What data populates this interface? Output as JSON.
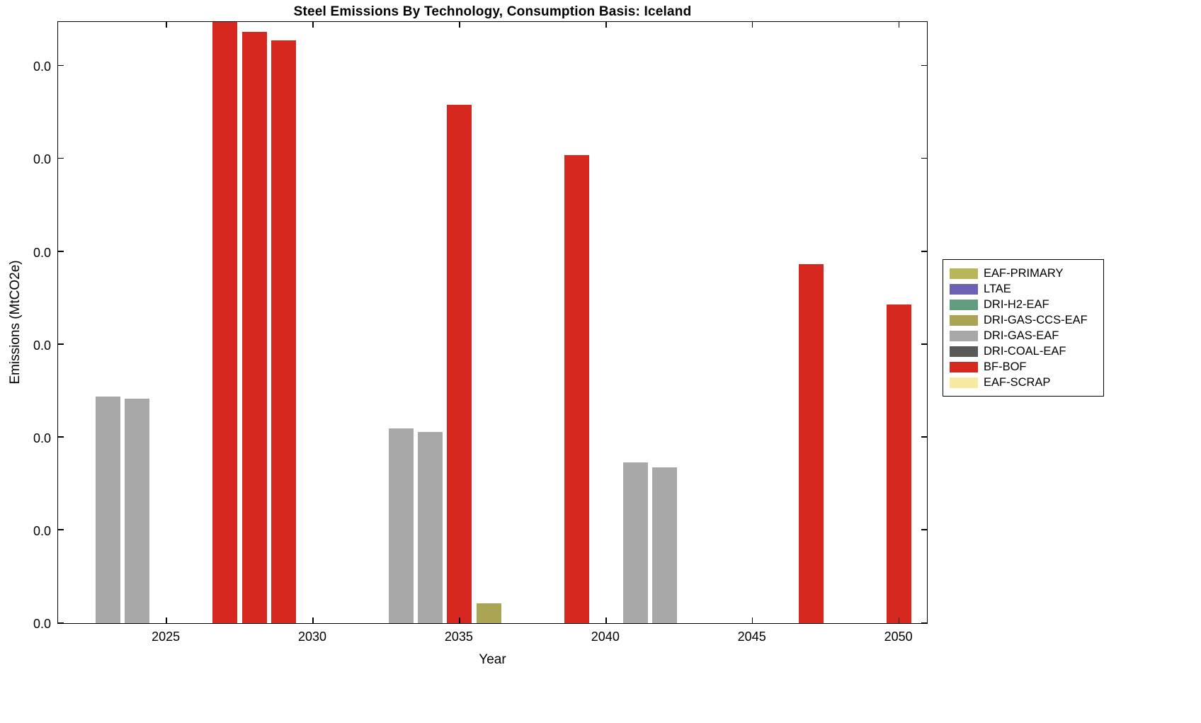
{
  "figure": {
    "title": "Steel Emissions By Technology, Consumption Basis: Iceland",
    "xlabel": "Year",
    "ylabel": "Emissions (MtCO2e)"
  },
  "legend": {
    "items": [
      {
        "label": "EAF-PRIMARY",
        "color": "#b9b659"
      },
      {
        "label": "LTAE",
        "color": "#6c61b4"
      },
      {
        "label": "DRI-H2-EAF",
        "color": "#619c80"
      },
      {
        "label": "DRI-GAS-CCS-EAF",
        "color": "#aaa454"
      },
      {
        "label": "DRI-GAS-EAF",
        "color": "#a8a8a8"
      },
      {
        "label": "DRI-COAL-EAF",
        "color": "#595959"
      },
      {
        "label": "BF-BOF",
        "color": "#d6281e"
      },
      {
        "label": "EAF-SCRAP",
        "color": "#f8e9a2"
      }
    ]
  },
  "chart_data": {
    "type": "bar",
    "title": "Steel Emissions By Technology, Consumption Basis: Iceland",
    "xlabel": "Year",
    "ylabel": "Emissions (MtCO2e)",
    "grid": false,
    "legend_position": "right-outside",
    "x_range": [
      2021.3,
      2051.0
    ],
    "x_ticks": [
      2025,
      2030,
      2035,
      2040,
      2045,
      2050
    ],
    "y_max_units": 6.49,
    "y_tick_note": "Gridline/tick spacing = 1 unit; every y tick label renders as 0.0 because the emission values are below the one-decimal display precision. Bar values below are in tick units (1 unit = one tick interval).",
    "y_ticks": [
      {
        "units": 0,
        "label": "0.0"
      },
      {
        "units": 1,
        "label": "0.0"
      },
      {
        "units": 2,
        "label": "0.0"
      },
      {
        "units": 3,
        "label": "0.0"
      },
      {
        "units": 4,
        "label": "0.0"
      },
      {
        "units": 5,
        "label": "0.0"
      },
      {
        "units": 6,
        "label": "0.0"
      }
    ],
    "bar_width_years": 0.85,
    "bars": [
      {
        "year": 2023,
        "tech": "DRI-GAS-EAF",
        "value": 2.44
      },
      {
        "year": 2024,
        "tech": "DRI-GAS-EAF",
        "value": 2.42
      },
      {
        "year": 2027,
        "tech": "BF-BOF",
        "value": 6.49
      },
      {
        "year": 2028,
        "tech": "BF-BOF",
        "value": 6.37
      },
      {
        "year": 2029,
        "tech": "BF-BOF",
        "value": 6.28
      },
      {
        "year": 2033,
        "tech": "DRI-GAS-EAF",
        "value": 2.1
      },
      {
        "year": 2034,
        "tech": "DRI-GAS-EAF",
        "value": 2.06
      },
      {
        "year": 2035,
        "tech": "BF-BOF",
        "value": 5.58
      },
      {
        "year": 2036,
        "tech": "DRI-GAS-CCS-EAF",
        "value": 0.21
      },
      {
        "year": 2039,
        "tech": "BF-BOF",
        "value": 5.04
      },
      {
        "year": 2041,
        "tech": "DRI-GAS-EAF",
        "value": 1.73
      },
      {
        "year": 2042,
        "tech": "DRI-GAS-EAF",
        "value": 1.68
      },
      {
        "year": 2047,
        "tech": "BF-BOF",
        "value": 3.87
      },
      {
        "year": 2050,
        "tech": "BF-BOF",
        "value": 3.43
      }
    ]
  }
}
